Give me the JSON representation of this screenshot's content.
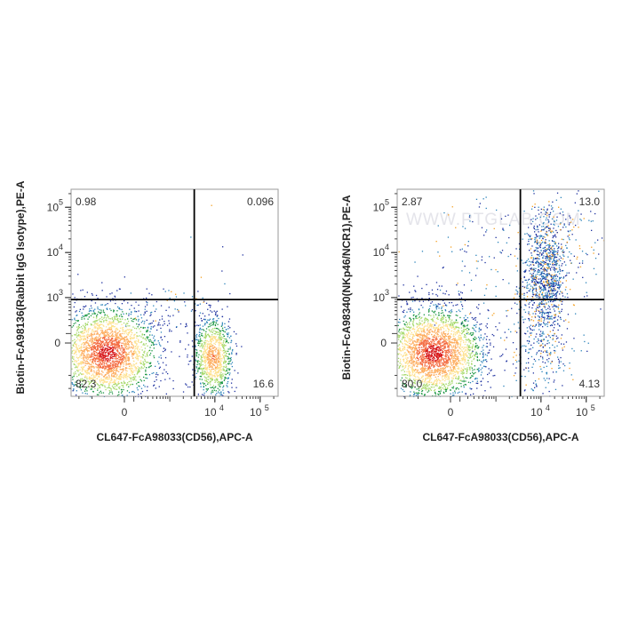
{
  "chart_data": [
    {
      "type": "scatter",
      "xlabel": "CL647-FcA98033(CD56),APC-A",
      "ylabel": "Biotin-FcA98136(Rabbit IgG Isotype),PE-A",
      "x_ticks": [
        {
          "value": "0",
          "text": "0",
          "sup": ""
        },
        {
          "value": "1e4",
          "text": "10",
          "sup": "4"
        },
        {
          "value": "1e5",
          "text": "10",
          "sup": "5"
        }
      ],
      "y_ticks": [
        {
          "value": "0",
          "text": "0",
          "sup": ""
        },
        {
          "value": "1e3",
          "text": "10",
          "sup": "3"
        },
        {
          "value": "1e4",
          "text": "10",
          "sup": "4"
        },
        {
          "value": "1e5",
          "text": "10",
          "sup": "5"
        }
      ],
      "quadrants": {
        "UL": "0.98",
        "UR": "0.096",
        "LL": "82.3",
        "LR": "16.6"
      },
      "gate": {
        "x": 3500,
        "y": 900
      },
      "populations": [
        {
          "cx": -200,
          "cy": -100,
          "sx": 0.55,
          "sy": 0.5,
          "n": 2600,
          "color_peak": true
        },
        {
          "cx": 9000,
          "cy": -150,
          "sx": 0.22,
          "sy": 0.45,
          "n": 1000,
          "color_peak": true
        },
        {
          "cx": 900,
          "cy": 600,
          "sx": 0.6,
          "sy": 0.25,
          "n": 70,
          "color_peak": false
        },
        {
          "cx": 20000,
          "cy": 20000,
          "sx": 1.0,
          "sy": 1.0,
          "n": 12,
          "color_peak": false
        }
      ]
    },
    {
      "type": "scatter",
      "xlabel": "CL647-FcA98033(CD56),APC-A",
      "ylabel": "Biotin-FcA98340(NKp46/NCR1),PE-A",
      "watermark": "WWW.PTGLAB.COM",
      "x_ticks": [
        {
          "value": "0",
          "text": "0",
          "sup": ""
        },
        {
          "value": "1e4",
          "text": "10",
          "sup": "4"
        },
        {
          "value": "1e5",
          "text": "10",
          "sup": "5"
        }
      ],
      "y_ticks": [
        {
          "value": "0",
          "text": "0",
          "sup": ""
        },
        {
          "value": "1e3",
          "text": "10",
          "sup": "3"
        },
        {
          "value": "1e4",
          "text": "10",
          "sup": "4"
        },
        {
          "value": "1e5",
          "text": "10",
          "sup": "5"
        }
      ],
      "quadrants": {
        "UL": "2.87",
        "UR": "13.0",
        "LL": "80.0",
        "LR": "4.13"
      },
      "gate": {
        "x": 3500,
        "y": 900
      },
      "populations": [
        {
          "cx": -200,
          "cy": -100,
          "sx": 0.55,
          "sy": 0.5,
          "n": 2800,
          "color_peak": true
        },
        {
          "cx": 13000,
          "cy": 6000,
          "sx": 0.22,
          "sy": 0.7,
          "n": 650,
          "color_peak": false
        },
        {
          "cx": 11000,
          "cy": 1200,
          "sx": 0.25,
          "sy": 0.55,
          "n": 420,
          "color_peak": false
        },
        {
          "cx": 45000,
          "cy": 20000,
          "sx": 0.35,
          "sy": 0.45,
          "n": 90,
          "color_peak": false
        },
        {
          "cx": 1500,
          "cy": 3500,
          "sx": 0.9,
          "sy": 0.9,
          "n": 220,
          "color_peak": false
        },
        {
          "cx": 10000,
          "cy": -150,
          "sx": 0.35,
          "sy": 0.45,
          "n": 180,
          "color_peak": false
        }
      ]
    }
  ]
}
